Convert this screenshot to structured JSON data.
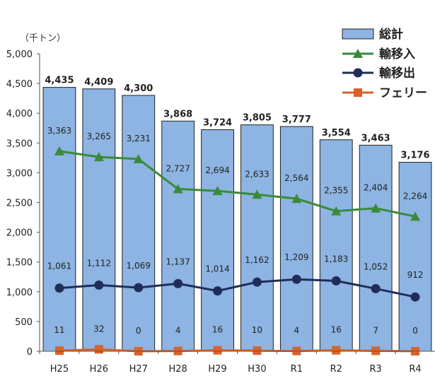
{
  "chart_data": {
    "type": "bar",
    "unit_label": "（千トン）",
    "categories": [
      "H25",
      "H26",
      "H27",
      "H28",
      "H29",
      "H30",
      "R1",
      "R2",
      "R3",
      "R4"
    ],
    "ylim": [
      0,
      5000
    ],
    "yticks": [
      "0",
      "500",
      "1,000",
      "1,500",
      "2,000",
      "2,500",
      "3,000",
      "3,500",
      "4,000",
      "4,500",
      "5,000"
    ],
    "grid": false,
    "legend_position": "top-right",
    "series": [
      {
        "name": "総計",
        "kind": "bar",
        "color": "#8db4e2",
        "values": [
          4435,
          4409,
          4300,
          3868,
          3724,
          3805,
          3777,
          3554,
          3463,
          3176
        ],
        "labels": [
          "4,435",
          "4,409",
          "4,300",
          "3,868",
          "3,724",
          "3,805",
          "3,777",
          "3,554",
          "3,463",
          "3,176"
        ]
      },
      {
        "name": "輸移入",
        "kind": "line",
        "marker": "triangle",
        "color": "#3a8a3a",
        "values": [
          3363,
          3265,
          3231,
          2727,
          2694,
          2633,
          2564,
          2355,
          2404,
          2264
        ],
        "labels": [
          "3,363",
          "3,265",
          "3,231",
          "2,727",
          "2,694",
          "2,633",
          "2,564",
          "2,355",
          "2,404",
          "2,264"
        ]
      },
      {
        "name": "輸移出",
        "kind": "line",
        "marker": "circle",
        "color": "#1f2d5a",
        "values": [
          1061,
          1112,
          1069,
          1137,
          1014,
          1162,
          1209,
          1183,
          1052,
          912
        ],
        "labels": [
          "1,061",
          "1,112",
          "1,069",
          "1,137",
          "1,014",
          "1,162",
          "1,209",
          "1,183",
          "1,052",
          "912"
        ]
      },
      {
        "name": "フェリー",
        "kind": "line",
        "marker": "square",
        "color": "#d9622b",
        "values": [
          11,
          32,
          0,
          4,
          16,
          10,
          4,
          16,
          7,
          0
        ],
        "labels": [
          "11",
          "32",
          "0",
          "4",
          "16",
          "10",
          "4",
          "16",
          "7",
          "0"
        ]
      }
    ]
  }
}
